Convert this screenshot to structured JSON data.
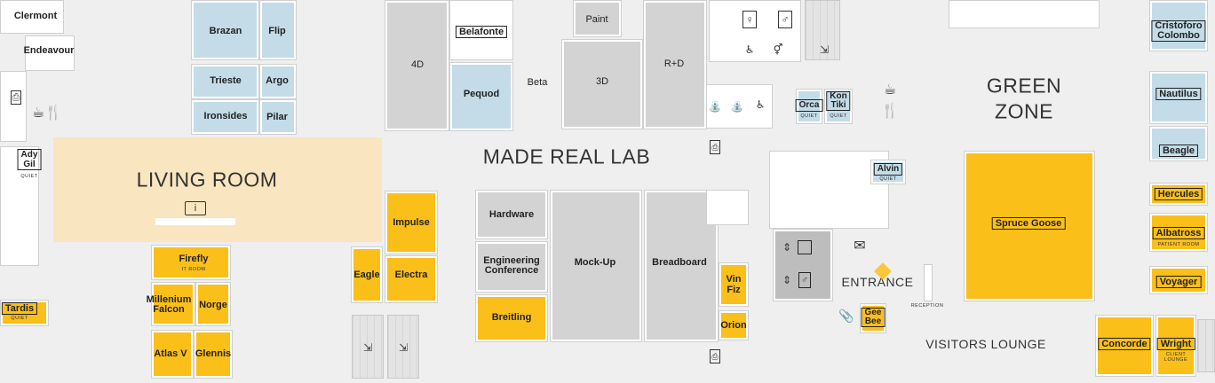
{
  "zones": {
    "living_room": "LIVING ROOM",
    "made_real_lab": "MADE REAL LAB",
    "green_zone_line1": "GREEN",
    "green_zone_line2": "ZONE",
    "entrance": "ENTRANCE",
    "visitors_lounge": "VISITORS LOUNGE",
    "reception": "RECEPTION"
  },
  "rooms": {
    "clermont": "Clermont",
    "endeavour": "Endeavour",
    "ady_gil_line1": "Ady",
    "ady_gil_line2": "Gil",
    "tardis": "Tardis",
    "brazan": "Brazan",
    "flip": "Flip",
    "trieste": "Trieste",
    "argo": "Argo",
    "ironsides": "Ironsides",
    "pilar": "Pilar",
    "four_d": "4D",
    "belafonte": "Belafonte",
    "pequod": "Pequod",
    "beta": "Beta",
    "paint": "Paint",
    "three_d": "3D",
    "r_d": "R+D",
    "orca": "Orca",
    "kon_tiki_line1": "Kon",
    "kon_tiki_line2": "Tiki",
    "alvin": "Alvin",
    "cristoforo_line1": "Cristoforo",
    "cristoforo_line2": "Colombo",
    "nautilus": "Nautilus",
    "beagle": "Beagle",
    "hercules": "Hercules",
    "albatross": "Albatross",
    "voyager": "Voyager",
    "concorde": "Concorde",
    "wright": "Wright",
    "spruce_goose": "Spruce Goose",
    "firefly": "Firefly",
    "millenium_line1": "Millenium",
    "millenium_line2": "Falcon",
    "norge": "Norge",
    "atlas_v": "Atlas V",
    "glennis": "Glennis",
    "impulse": "Impulse",
    "eagle": "Eagle",
    "electra": "Electra",
    "hardware": "Hardware",
    "engineering_line1": "Engineering",
    "engineering_line2": "Conference",
    "breitling": "Breitling",
    "mock_up": "Mock-Up",
    "breadboard": "Breadboard",
    "vin_fiz_line1": "Vin",
    "vin_fiz_line2": "Fiz",
    "orion": "Orion",
    "gee_bee_line1": "Gee",
    "gee_bee_line2": "Bee"
  },
  "sublabels": {
    "quiet": "QUIET",
    "it_room": "IT ROOM",
    "patient_room": "PATIENT ROOM",
    "client_lounge_line1": "CLIENT",
    "client_lounge_line2": "LOUNGE"
  },
  "icons": {
    "info": "info-icon",
    "coffee": "coffee-icon",
    "cutlery": "cutlery-icon",
    "elevator": "elevator-icon",
    "mail": "mail-icon",
    "restroom_female": "restroom-female-icon",
    "restroom_male": "restroom-male-icon",
    "shower": "shower-icon",
    "stairs": "stairs-icon",
    "printer": "printer-icon",
    "paperclip": "paperclip-icon",
    "accessible": "accessible-restroom-icon"
  },
  "colors": {
    "meeting_room": "#c3dce8",
    "bookable_room": "#fbbf1a",
    "lab_room": "#d3d3d3",
    "living_room": "#f9e5bf",
    "entrance_arrow": "#fbbf1a"
  }
}
